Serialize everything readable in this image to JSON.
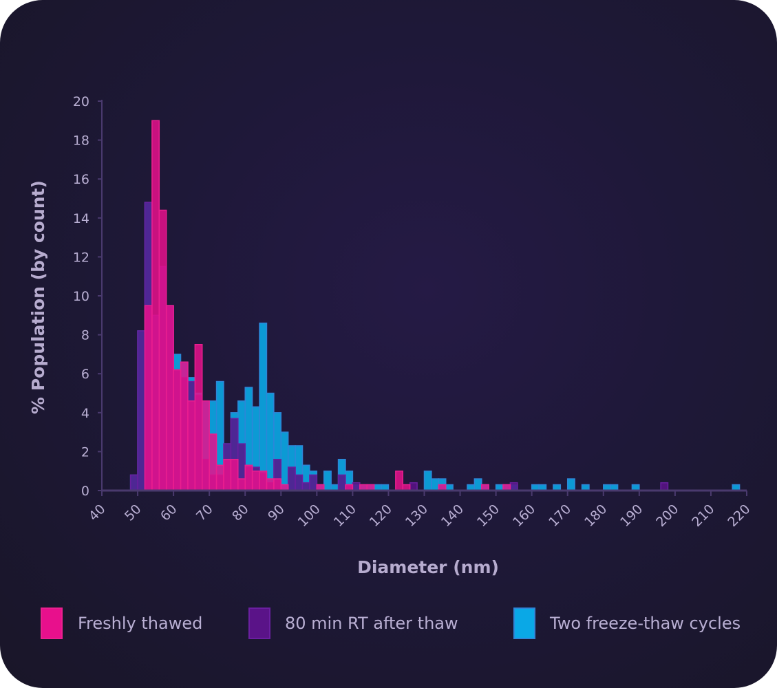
{
  "chart_data": {
    "type": "bar",
    "subtype": "overlaid histogram",
    "xlabel": "Diameter (nm)",
    "ylabel": "% Population (by count)",
    "xlim": [
      40,
      220
    ],
    "ylim": [
      0,
      20
    ],
    "bin_width": 2,
    "x_ticks": [
      "40",
      "50",
      "60",
      "70",
      "80",
      "90",
      "100",
      "110",
      "120",
      "130",
      "140",
      "150",
      "160",
      "170",
      "180",
      "190",
      "200",
      "210",
      "220"
    ],
    "y_ticks": [
      "0",
      "2",
      "4",
      "6",
      "8",
      "10",
      "12",
      "14",
      "16",
      "18",
      "20"
    ],
    "colors": {
      "background": "#1c1733",
      "axis": "#4a3a6e"
    },
    "series": [
      {
        "name": "Two freeze-thaw cycles",
        "color": "#0aa8e6",
        "stroke": "#2e86d8",
        "points": [
          [
            48,
            0.8
          ],
          [
            50,
            8.2
          ],
          [
            52,
            14.8
          ],
          [
            54,
            9.0
          ],
          [
            56,
            11.5
          ],
          [
            58,
            9.5
          ],
          [
            60,
            7.0
          ],
          [
            62,
            6.6
          ],
          [
            64,
            5.8
          ],
          [
            66,
            5.0
          ],
          [
            68,
            4.6
          ],
          [
            70,
            4.6
          ],
          [
            72,
            5.6
          ],
          [
            74,
            2.4
          ],
          [
            76,
            4.0
          ],
          [
            78,
            4.6
          ],
          [
            80,
            5.3
          ],
          [
            82,
            4.3
          ],
          [
            84,
            8.6
          ],
          [
            86,
            5.0
          ],
          [
            88,
            4.0
          ],
          [
            90,
            3.0
          ],
          [
            92,
            2.3
          ],
          [
            94,
            2.3
          ],
          [
            96,
            1.3
          ],
          [
            98,
            1.0
          ],
          [
            100,
            0.3
          ],
          [
            102,
            1.0
          ],
          [
            104,
            0.3
          ],
          [
            106,
            1.6
          ],
          [
            108,
            1.0
          ],
          [
            110,
            0.3
          ],
          [
            112,
            0.3
          ],
          [
            114,
            0.3
          ],
          [
            116,
            0.3
          ],
          [
            118,
            0.3
          ],
          [
            130,
            1.0
          ],
          [
            132,
            0.6
          ],
          [
            134,
            0.6
          ],
          [
            136,
            0.3
          ],
          [
            142,
            0.3
          ],
          [
            144,
            0.6
          ],
          [
            146,
            0.3
          ],
          [
            150,
            0.3
          ],
          [
            152,
            0.3
          ],
          [
            154,
            0.3
          ],
          [
            160,
            0.3
          ],
          [
            162,
            0.3
          ],
          [
            166,
            0.3
          ],
          [
            170,
            0.6
          ],
          [
            174,
            0.3
          ],
          [
            180,
            0.3
          ],
          [
            182,
            0.3
          ],
          [
            188,
            0.3
          ],
          [
            216,
            0.3
          ]
        ]
      },
      {
        "name": "80 min RT after thaw",
        "color": "#5a1388",
        "stroke": "#6a1fa0",
        "points": [
          [
            48,
            0.8
          ],
          [
            50,
            8.2
          ],
          [
            52,
            14.8
          ],
          [
            54,
            9.0
          ],
          [
            56,
            11.5
          ],
          [
            58,
            9.5
          ],
          [
            60,
            6.2
          ],
          [
            62,
            5.8
          ],
          [
            64,
            5.6
          ],
          [
            66,
            4.9
          ],
          [
            68,
            1.6
          ],
          [
            70,
            0.8
          ],
          [
            72,
            0.8
          ],
          [
            74,
            2.4
          ],
          [
            76,
            3.7
          ],
          [
            78,
            2.4
          ],
          [
            80,
            1.2
          ],
          [
            82,
            1.2
          ],
          [
            84,
            0.9
          ],
          [
            86,
            0.4
          ],
          [
            88,
            1.6
          ],
          [
            92,
            1.2
          ],
          [
            94,
            0.8
          ],
          [
            96,
            0.4
          ],
          [
            98,
            0.8
          ],
          [
            106,
            0.8
          ],
          [
            108,
            0.3
          ],
          [
            110,
            0.4
          ],
          [
            126,
            0.4
          ],
          [
            154,
            0.4
          ],
          [
            196,
            0.4
          ]
        ]
      },
      {
        "name": "Freshly thawed",
        "color": "#e8108c",
        "stroke": "#ea1f8f",
        "points": [
          [
            52,
            9.5
          ],
          [
            54,
            19.0
          ],
          [
            56,
            14.4
          ],
          [
            58,
            9.5
          ],
          [
            60,
            6.2
          ],
          [
            62,
            6.6
          ],
          [
            64,
            4.6
          ],
          [
            66,
            7.5
          ],
          [
            68,
            4.6
          ],
          [
            70,
            2.9
          ],
          [
            72,
            1.3
          ],
          [
            74,
            1.6
          ],
          [
            76,
            1.6
          ],
          [
            78,
            0.6
          ],
          [
            80,
            1.3
          ],
          [
            82,
            1.0
          ],
          [
            84,
            1.0
          ],
          [
            86,
            0.6
          ],
          [
            88,
            0.6
          ],
          [
            90,
            0.3
          ],
          [
            100,
            0.3
          ],
          [
            108,
            0.3
          ],
          [
            112,
            0.3
          ],
          [
            114,
            0.3
          ],
          [
            122,
            1.0
          ],
          [
            124,
            0.3
          ],
          [
            134,
            0.3
          ],
          [
            146,
            0.3
          ],
          [
            152,
            0.3
          ]
        ]
      }
    ],
    "legend": [
      "Freshly thawed",
      "80 min RT after thaw",
      "Two freeze-thaw cycles"
    ],
    "legend_colors": [
      "#e8108c",
      "#5a1388",
      "#0aa8e6"
    ],
    "legend_position": "bottom"
  }
}
